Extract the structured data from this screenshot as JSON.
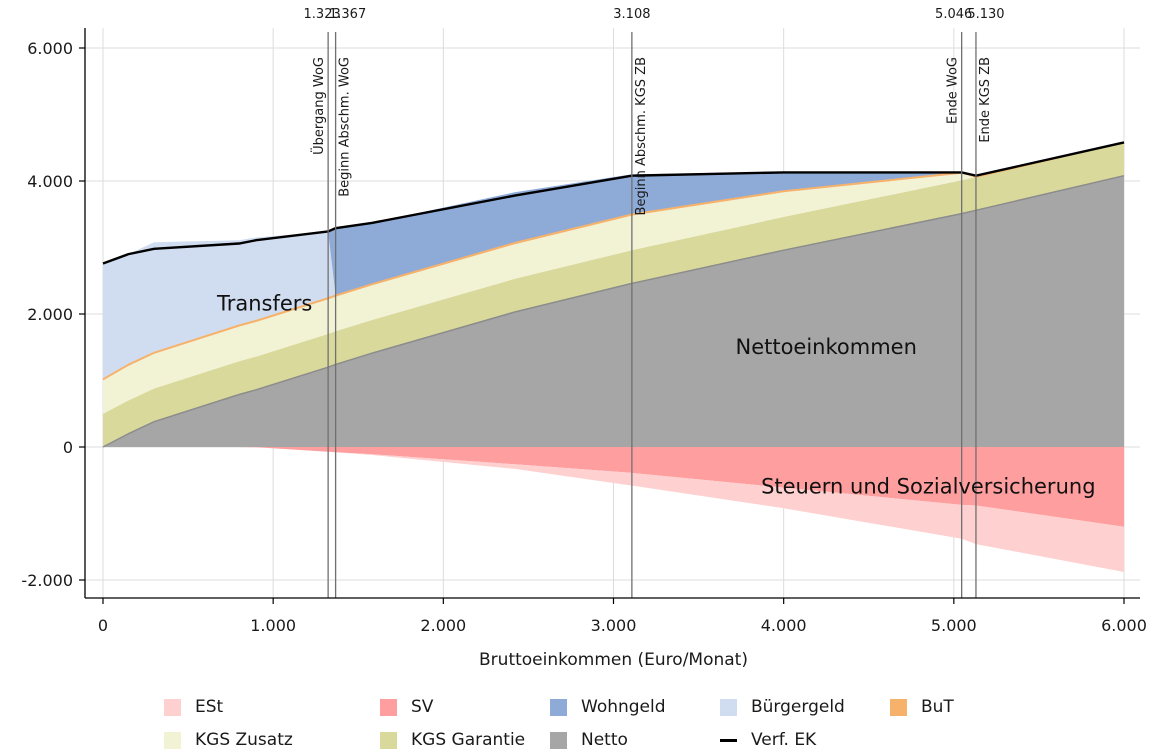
{
  "chart_data": {
    "type": "area",
    "xlabel": "Bruttoeinkommen (Euro/Monat)",
    "xlim": [
      0,
      6000
    ],
    "ylim": [
      -2500,
      6000
    ],
    "x_ticks": [
      0,
      1000,
      2000,
      3000,
      4000,
      5000,
      6000
    ],
    "x_tick_labels": [
      "0",
      "1.000",
      "2.000",
      "3.000",
      "4.000",
      "5.000",
      "6.000"
    ],
    "y_ticks": [
      -2000,
      0,
      2000,
      4000,
      6000
    ],
    "y_tick_labels": [
      "-2.000",
      "0",
      "2.000",
      "4.000",
      "6.000"
    ],
    "grid": true,
    "legend_position": "bottom",
    "vertical_lines": [
      {
        "x": 1323,
        "value_label": "1.323",
        "label": "Übergang WoG"
      },
      {
        "x": 1367,
        "value_label": "1.367",
        "label": "Beginn Abschm. WoG"
      },
      {
        "x": 3108,
        "value_label": "3.108",
        "label": "Beginn Abschm. KGS ZB"
      },
      {
        "x": 5046,
        "value_label": "5.046",
        "label": "Ende WoG"
      },
      {
        "x": 5130,
        "value_label": "5.130",
        "label": "Ende KGS ZB"
      }
    ],
    "annotations": [
      {
        "text": "Transfers",
        "x": 950,
        "y": 2050
      },
      {
        "text": "Nettoeinkommen",
        "x": 4250,
        "y": 1400
      },
      {
        "text": "Steuern und Sozialversicherung",
        "x": 4850,
        "y": -700
      }
    ],
    "x": [
      0,
      150,
      300,
      800,
      900,
      1323,
      1367,
      1580,
      2420,
      3108,
      4000,
      5046,
      5130,
      6000
    ],
    "series": [
      {
        "name": "Netto",
        "color": "#a6a6a6",
        "values": [
          0,
          200,
          380,
          790,
          860,
          1200,
          1240,
          1410,
          2030,
          2460,
          2960,
          3510,
          3560,
          4080
        ]
      },
      {
        "name": "KGS Garantie",
        "color": "#d9d99c",
        "values": [
          500,
          500,
          500,
          500,
          500,
          500,
          500,
          500,
          500,
          500,
          500,
          500,
          500,
          500
        ]
      },
      {
        "name": "KGS Zusatz",
        "color": "#f2f2d5",
        "values": [
          500,
          520,
          520,
          520,
          520,
          520,
          520,
          520,
          520,
          520,
          370,
          100,
          0,
          0
        ]
      },
      {
        "name": "BuT",
        "color": "#f6b26b",
        "values": [
          20,
          20,
          20,
          20,
          20,
          20,
          20,
          20,
          20,
          20,
          20,
          20,
          0,
          0
        ]
      },
      {
        "name": "Bürgergeld",
        "color": "#d0ddf0",
        "values": [
          1740,
          1660,
          1660,
          1280,
          1250,
          1000,
          0,
          0,
          0,
          0,
          0,
          0,
          0,
          0
        ]
      },
      {
        "name": "Wohngeld",
        "color": "#8eabd8",
        "values": [
          0,
          0,
          0,
          0,
          0,
          0,
          1010,
          920,
          760,
          600,
          280,
          0,
          0,
          0
        ]
      },
      {
        "name": "SV",
        "color": "#ff9e9e",
        "values": [
          0,
          0,
          0,
          0,
          -5,
          -70,
          -80,
          -110,
          -260,
          -390,
          -610,
          -870,
          -880,
          -1200
        ]
      },
      {
        "name": "ESt",
        "color": "#ffd0d0",
        "values": [
          0,
          0,
          0,
          0,
          0,
          0,
          0,
          -10,
          -70,
          -190,
          -310,
          -510,
          -580,
          -680
        ]
      },
      {
        "name": "Verf. EK",
        "color": "#000000",
        "values": [
          2760,
          2900,
          2980,
          3060,
          3110,
          3240,
          3290,
          3370,
          3780,
          4080,
          4130,
          4130,
          4080,
          4580
        ]
      }
    ],
    "legend": [
      "ESt",
      "SV",
      "Wohngeld",
      "Bürgergeld",
      "BuT",
      "KGS Zusatz",
      "KGS Garantie",
      "Netto",
      "Verf. EK"
    ]
  }
}
